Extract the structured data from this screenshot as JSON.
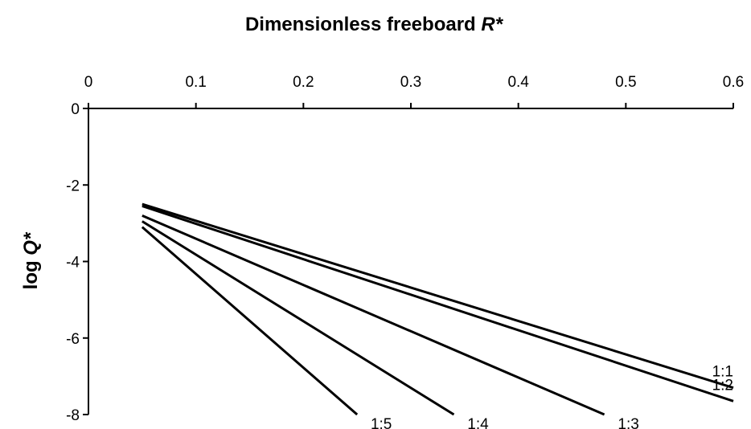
{
  "chart_data": {
    "type": "line",
    "title_main": "Dimensionless freeboard ",
    "title_var": "R*",
    "ylabel_main": "log ",
    "ylabel_var": "Q*",
    "xlim": [
      0,
      0.6
    ],
    "ylim": [
      -8,
      0
    ],
    "x_axis_position": "top",
    "x_ticks": [
      "0",
      "0.1",
      "0.2",
      "0.3",
      "0.4",
      "0.5",
      "0.6"
    ],
    "y_ticks": [
      "0",
      "-2",
      "-4",
      "-6",
      "-8"
    ],
    "grid": false,
    "legend": "none",
    "series": [
      {
        "name": "1:1",
        "x": [
          0.05,
          0.6
        ],
        "y": [
          -2.5,
          -7.3
        ]
      },
      {
        "name": "1:2",
        "x": [
          0.05,
          0.6
        ],
        "y": [
          -2.55,
          -7.65
        ]
      },
      {
        "name": "1:3",
        "x": [
          0.05,
          0.48
        ],
        "y": [
          -2.8,
          -8.0
        ]
      },
      {
        "name": "1:4",
        "x": [
          0.05,
          0.34
        ],
        "y": [
          -2.95,
          -8.0
        ]
      },
      {
        "name": "1:5",
        "x": [
          0.05,
          0.25
        ],
        "y": [
          -3.1,
          -8.0
        ]
      }
    ]
  }
}
